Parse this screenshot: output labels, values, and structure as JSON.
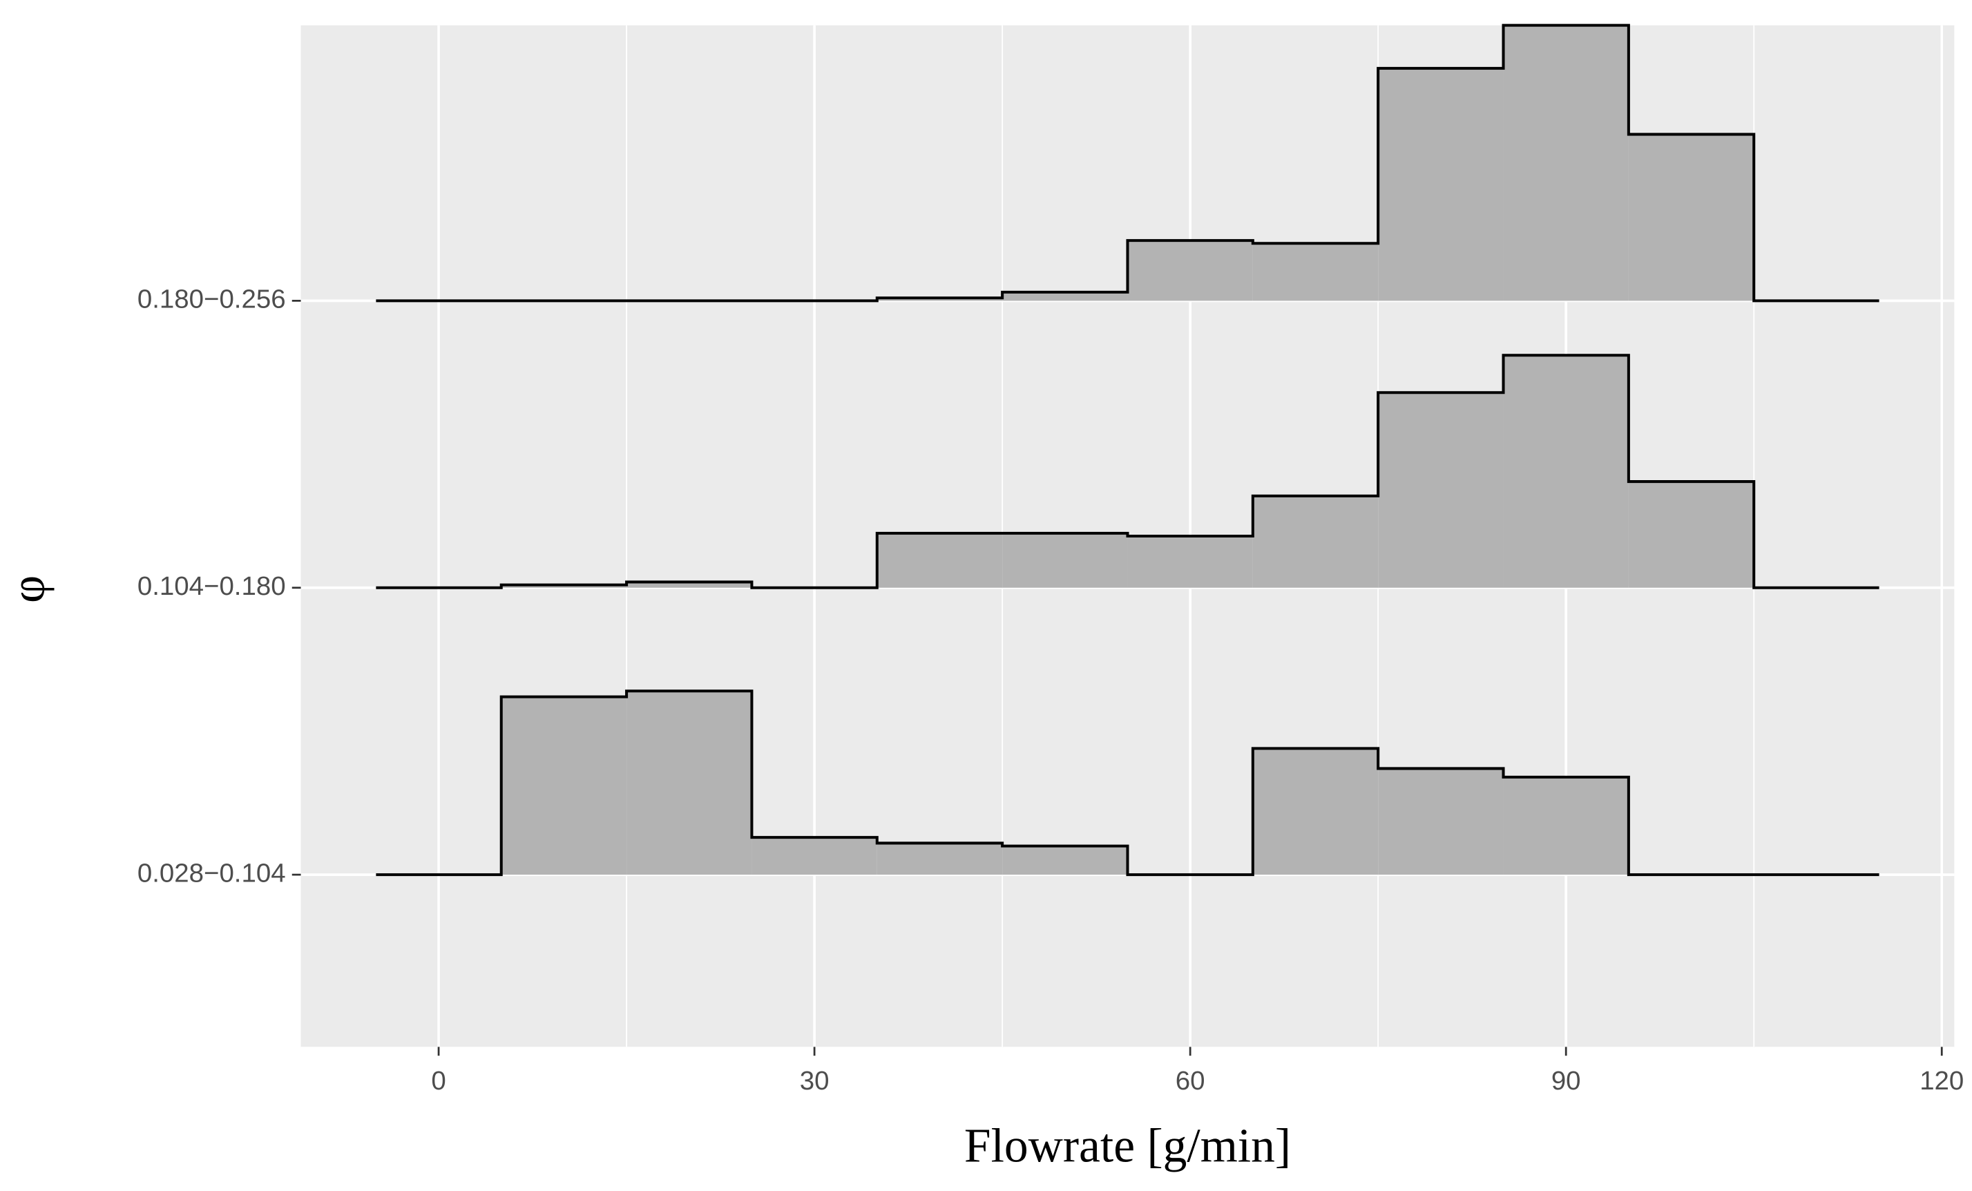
{
  "chart_data": {
    "type": "ridgeline_histogram",
    "x_label": "Flowrate [g/min]",
    "y_label": "φ",
    "categories": [
      "0.028−0.104",
      "0.104−0.180",
      "0.180−0.256"
    ],
    "bins": [
      -5,
      5,
      15,
      25,
      35,
      45,
      55,
      65,
      75,
      85,
      95,
      105,
      115
    ],
    "values": [
      [
        0,
        0.62,
        0.64,
        0.13,
        0.11,
        0.1,
        0,
        0.44,
        0.37,
        0.34,
        0,
        0
      ],
      [
        0,
        0.01,
        0.02,
        0,
        0.19,
        0.19,
        0.18,
        0.32,
        0.68,
        0.81,
        0.37,
        0
      ],
      [
        0,
        0,
        0,
        0,
        0.01,
        0.03,
        0.21,
        0.2,
        0.81,
        0.96,
        0.58,
        0
      ]
    ],
    "fill": "#b3b3b3",
    "line_color": "#000000",
    "xlim": [
      -11,
      121
    ],
    "xticks": [
      0,
      30,
      60,
      90,
      120
    ],
    "ylim": [
      -0.6,
      2.96
    ],
    "grid": true
  }
}
